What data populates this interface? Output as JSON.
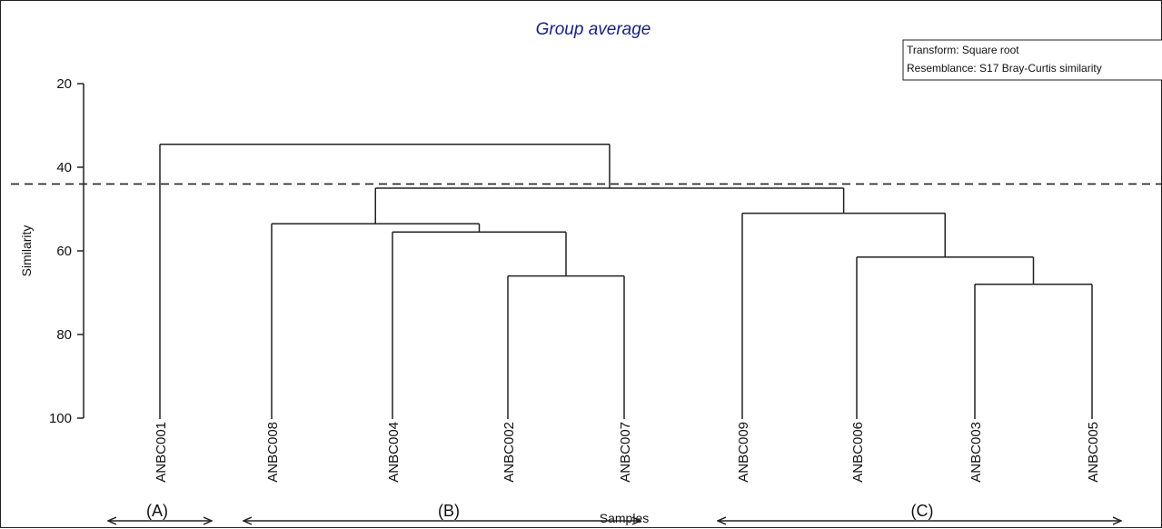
{
  "chart_data": {
    "type": "dendrogram",
    "title": "Group average",
    "legend": [
      "Transform: Square root",
      "Resemblance: S17 Bray-Curtis similarity"
    ],
    "ylabel": "Similarity",
    "xlabel": "Samples",
    "ylim": [
      100,
      20
    ],
    "y_ticks": [
      20,
      40,
      60,
      80,
      100
    ],
    "cut_line": 44,
    "leaves": [
      "ANBC001",
      "ANBC008",
      "ANBC004",
      "ANBC002",
      "ANBC007",
      "ANBC009",
      "ANBC006",
      "ANBC003",
      "ANBC005"
    ],
    "merges": [
      {
        "id": "m1",
        "a": "ANBC002",
        "b": "ANBC007",
        "similarity": 66
      },
      {
        "id": "m2",
        "a": "ANBC004",
        "b": "m1",
        "similarity": 55.5
      },
      {
        "id": "m3",
        "a": "ANBC008",
        "b": "m2",
        "similarity": 53.5
      },
      {
        "id": "m4",
        "a": "ANBC003",
        "b": "ANBC005",
        "similarity": 68
      },
      {
        "id": "m5",
        "a": "ANBC006",
        "b": "m4",
        "similarity": 61.5
      },
      {
        "id": "m6",
        "a": "ANBC009",
        "b": "m5",
        "similarity": 51
      },
      {
        "id": "m7",
        "a": "m3",
        "b": "m6",
        "similarity": 45
      },
      {
        "id": "m8",
        "a": "ANBC001",
        "b": "m7",
        "similarity": 34.5
      }
    ],
    "groups": [
      {
        "label": "(A)",
        "from": "ANBC001",
        "to": "ANBC001"
      },
      {
        "label": "(B)",
        "from": "ANBC008",
        "to": "ANBC007"
      },
      {
        "label": "(C)",
        "from": "ANBC009",
        "to": "ANBC005"
      }
    ]
  }
}
